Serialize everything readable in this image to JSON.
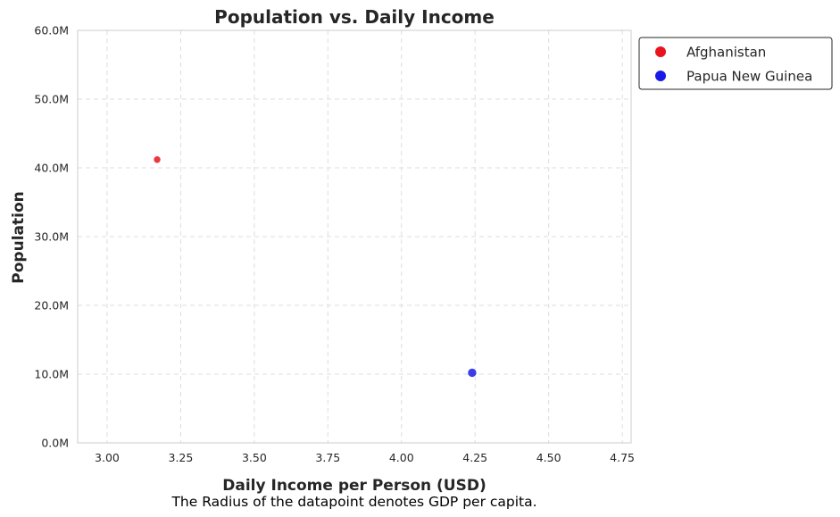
{
  "chart_data": {
    "type": "scatter",
    "title": "Population vs. Daily Income",
    "xlabel": "Daily Income per Person (USD)",
    "ylabel": "Population",
    "caption": "The Radius of the datapoint denotes GDP per capita.",
    "xlim": [
      2.9,
      4.78
    ],
    "ylim": [
      0,
      60000000
    ],
    "xticks": [
      3.0,
      3.25,
      3.5,
      3.75,
      4.0,
      4.25,
      4.5,
      4.75
    ],
    "xtick_labels": [
      "3.00",
      "3.25",
      "3.50",
      "3.75",
      "4.00",
      "4.25",
      "4.50",
      "4.75"
    ],
    "yticks": [
      0,
      10000000,
      20000000,
      30000000,
      40000000,
      50000000,
      60000000
    ],
    "ytick_labels": [
      "0.0M",
      "10.0M",
      "20.0M",
      "30.0M",
      "40.0M",
      "50.0M",
      "60.0M"
    ],
    "grid": true,
    "legend_position": "outside-top-right",
    "series": [
      {
        "name": "Afghanistan",
        "color": "#e8141e",
        "points": [
          {
            "x": 3.17,
            "y": 41200000,
            "size": 4
          }
        ]
      },
      {
        "name": "Papua New Guinea",
        "color": "#1a1ae6",
        "points": [
          {
            "x": 4.24,
            "y": 10200000,
            "size": 5
          }
        ]
      }
    ]
  }
}
